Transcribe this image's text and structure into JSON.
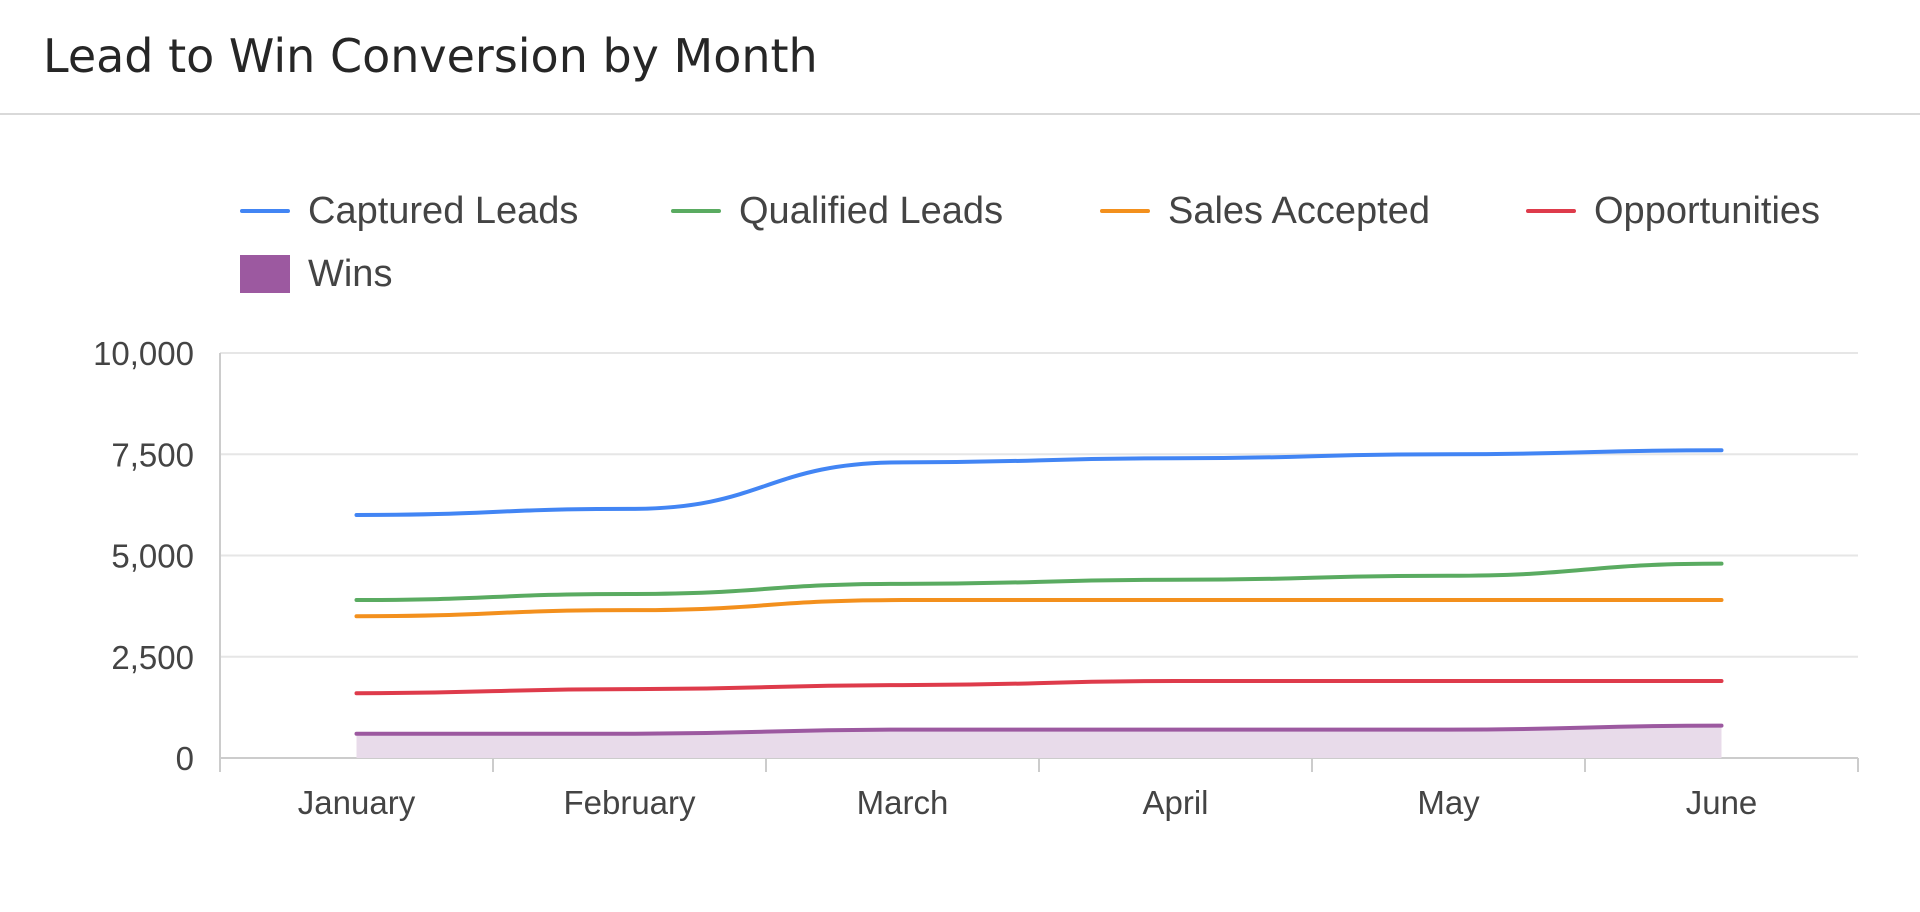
{
  "title": "Lead to Win Conversion by Month",
  "colors": {
    "captured": "#4285f4",
    "qualified": "#5aab61",
    "sales_accepted": "#f3901d",
    "opportunities": "#de3b4b",
    "wins": "#9c59a0",
    "wins_fill": "#e8dbea",
    "grid": "#e6e6e6",
    "axis": "#cccccc"
  },
  "legend": [
    {
      "label": "Captured Leads",
      "color": "#4285f4",
      "shape": "line"
    },
    {
      "label": "Qualified Leads",
      "color": "#5aab61",
      "shape": "line"
    },
    {
      "label": "Sales Accepted",
      "color": "#f3901d",
      "shape": "line"
    },
    {
      "label": "Opportunities",
      "color": "#de3b4b",
      "shape": "line"
    },
    {
      "label": "Wins",
      "color": "#9c59a0",
      "shape": "box"
    }
  ],
  "chart_data": {
    "type": "line",
    "title": "Lead to Win Conversion by Month",
    "categories": [
      "January",
      "February",
      "March",
      "April",
      "May",
      "June"
    ],
    "ylim": [
      0,
      10000
    ],
    "yticks": [
      0,
      2500,
      5000,
      7500,
      10000
    ],
    "ytick_labels": [
      "0",
      "2,500",
      "5,000",
      "7,500",
      "10,000"
    ],
    "grid": true,
    "legend_position": "top",
    "series": [
      {
        "name": "Captured Leads",
        "type": "line",
        "color": "#4285f4",
        "values": [
          6000,
          6150,
          7300,
          7400,
          7500,
          7600
        ]
      },
      {
        "name": "Qualified Leads",
        "type": "line",
        "color": "#5aab61",
        "values": [
          3900,
          4050,
          4300,
          4400,
          4500,
          4800
        ]
      },
      {
        "name": "Sales Accepted",
        "type": "line",
        "color": "#f3901d",
        "values": [
          3500,
          3650,
          3900,
          3900,
          3900,
          3900
        ]
      },
      {
        "name": "Opportunities",
        "type": "line",
        "color": "#de3b4b",
        "values": [
          1600,
          1700,
          1800,
          1900,
          1900,
          1900
        ]
      },
      {
        "name": "Wins",
        "type": "area",
        "color": "#9c59a0",
        "fill": "#e8dbea",
        "values": [
          600,
          600,
          700,
          700,
          700,
          800
        ]
      }
    ]
  }
}
